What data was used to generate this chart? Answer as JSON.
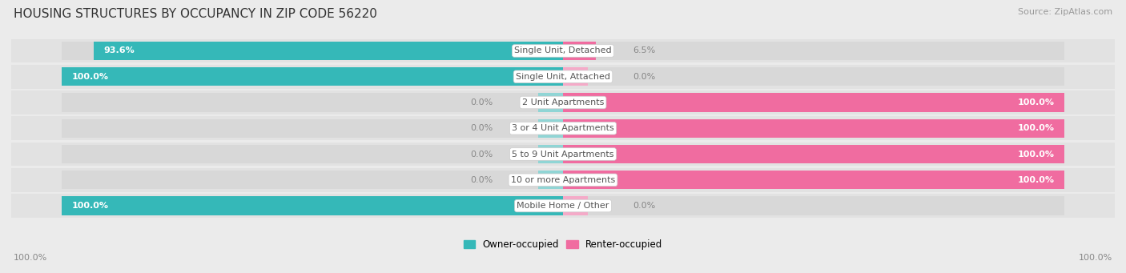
{
  "title": "HOUSING STRUCTURES BY OCCUPANCY IN ZIP CODE 56220",
  "source": "Source: ZipAtlas.com",
  "categories": [
    "Single Unit, Detached",
    "Single Unit, Attached",
    "2 Unit Apartments",
    "3 or 4 Unit Apartments",
    "5 to 9 Unit Apartments",
    "10 or more Apartments",
    "Mobile Home / Other"
  ],
  "owner_pct": [
    93.6,
    100.0,
    0.0,
    0.0,
    0.0,
    0.0,
    100.0
  ],
  "renter_pct": [
    6.5,
    0.0,
    100.0,
    100.0,
    100.0,
    100.0,
    0.0
  ],
  "owner_color": "#35b8b8",
  "renter_color": "#f06ca0",
  "renter_color_light": "#f5aac8",
  "owner_label": "Owner-occupied",
  "renter_label": "Renter-occupied",
  "bg_color": "#ebebeb",
  "bar_row_bg": "#e2e2e2",
  "bar_bg_color": "#d8d8d8",
  "title_fontsize": 11,
  "source_fontsize": 8,
  "label_fontsize": 8,
  "category_fontsize": 8,
  "bar_height": 0.72,
  "figsize": [
    14.06,
    3.41
  ],
  "dpi": 100,
  "owner_label_color": "#ffffff",
  "renter_label_color": "#ffffff",
  "zero_label_color": "#888888",
  "category_box_color": "#ffffff",
  "category_text_color": "#555555"
}
